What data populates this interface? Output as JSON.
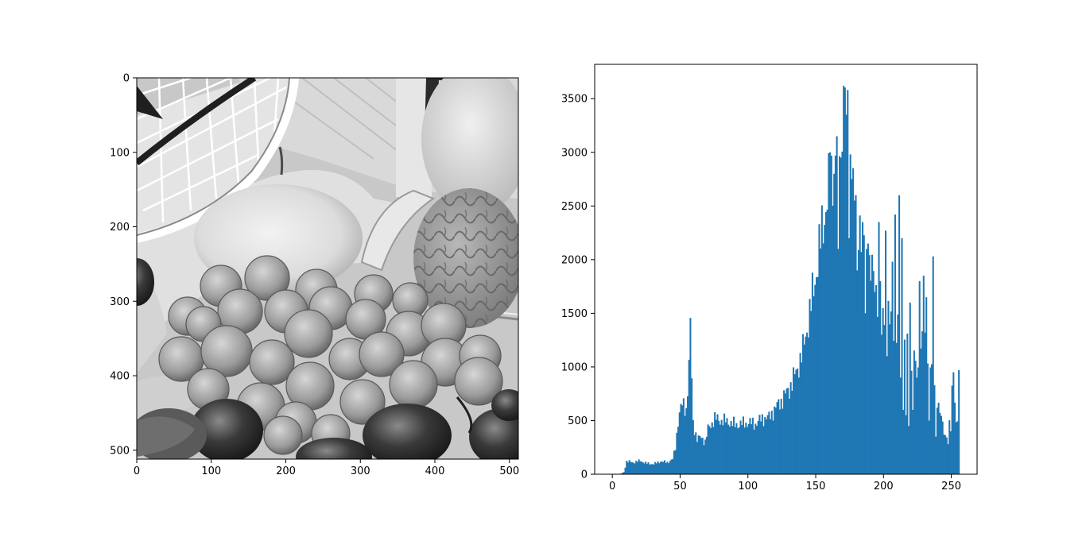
{
  "chart_data": [
    {
      "type": "image",
      "title": "",
      "xlabel": "",
      "ylabel": "",
      "xlim": [
        0,
        512
      ],
      "ylim": [
        512,
        0
      ],
      "xticks": [
        0,
        100,
        200,
        300,
        400,
        500
      ],
      "yticks": [
        0,
        100,
        200,
        300,
        400,
        500
      ],
      "colormap": "gray"
    },
    {
      "type": "bar",
      "title": "",
      "xlabel": "",
      "ylabel": "",
      "xlim": [
        -13,
        269
      ],
      "ylim": [
        0,
        3820
      ],
      "xticks": [
        0,
        50,
        100,
        150,
        200,
        250
      ],
      "yticks": [
        0,
        500,
        1000,
        1500,
        2000,
        2500,
        3000,
        3500
      ],
      "color": "#1f77b4",
      "bin_width": 1,
      "anchors": [
        [
          0,
          0
        ],
        [
          5,
          0
        ],
        [
          8,
          20
        ],
        [
          10,
          120
        ],
        [
          15,
          110
        ],
        [
          20,
          125
        ],
        [
          25,
          100
        ],
        [
          30,
          95
        ],
        [
          35,
          120
        ],
        [
          40,
          110
        ],
        [
          44,
          140
        ],
        [
          46,
          250
        ],
        [
          48,
          500
        ],
        [
          50,
          620
        ],
        [
          52,
          650
        ],
        [
          54,
          600
        ],
        [
          55,
          800
        ],
        [
          56,
          1000
        ],
        [
          57,
          1370
        ],
        [
          58,
          900
        ],
        [
          59,
          480
        ],
        [
          62,
          320
        ],
        [
          65,
          350
        ],
        [
          68,
          300
        ],
        [
          70,
          420
        ],
        [
          75,
          520
        ],
        [
          80,
          500
        ],
        [
          85,
          490
        ],
        [
          90,
          460
        ],
        [
          95,
          470
        ],
        [
          100,
          480
        ],
        [
          105,
          470
        ],
        [
          110,
          520
        ],
        [
          115,
          530
        ],
        [
          120,
          620
        ],
        [
          125,
          700
        ],
        [
          130,
          800
        ],
        [
          135,
          950
        ],
        [
          140,
          1150
        ],
        [
          145,
          1500
        ],
        [
          150,
          1900
        ],
        [
          155,
          2350
        ],
        [
          160,
          2700
        ],
        [
          165,
          3000
        ],
        [
          168,
          3300
        ],
        [
          170,
          3550
        ],
        [
          172,
          3380
        ],
        [
          175,
          2900
        ],
        [
          180,
          2500
        ],
        [
          185,
          2100
        ],
        [
          190,
          1900
        ],
        [
          195,
          1700
        ],
        [
          200,
          1500
        ],
        [
          205,
          1400
        ],
        [
          210,
          1300
        ],
        [
          213,
          1250
        ],
        [
          215,
          1200
        ],
        [
          220,
          1050
        ],
        [
          225,
          1100
        ],
        [
          228,
          1350
        ],
        [
          230,
          1350
        ],
        [
          233,
          1100
        ],
        [
          235,
          1000
        ],
        [
          238,
          800
        ],
        [
          240,
          650
        ],
        [
          243,
          450
        ],
        [
          245,
          350
        ],
        [
          248,
          500
        ],
        [
          250,
          780
        ],
        [
          252,
          650
        ],
        [
          254,
          450
        ],
        [
          255,
          970
        ],
        [
          256,
          0
        ]
      ],
      "spikes": [
        [
          160,
          3000
        ],
        [
          163,
          2800
        ],
        [
          165,
          3150
        ],
        [
          168,
          2950
        ],
        [
          170,
          3620
        ],
        [
          172,
          3350
        ],
        [
          176,
          2750
        ],
        [
          178,
          2550
        ],
        [
          186,
          2450
        ],
        [
          188,
          2150
        ],
        [
          196,
          2350
        ],
        [
          197,
          1800
        ],
        [
          201,
          2270
        ],
        [
          206,
          1980
        ],
        [
          208,
          2420
        ],
        [
          211,
          2600
        ],
        [
          213,
          2200
        ],
        [
          219,
          1600
        ],
        [
          226,
          1800
        ],
        [
          229,
          1850
        ],
        [
          231,
          1650
        ],
        [
          236,
          2030
        ],
        [
          251,
          950
        ]
      ],
      "dips": [
        [
          166,
          2100
        ],
        [
          174,
          2200
        ],
        [
          180,
          1900
        ],
        [
          186,
          1500
        ],
        [
          198,
          1300
        ],
        [
          202,
          1100
        ],
        [
          212,
          900
        ],
        [
          214,
          600
        ],
        [
          216,
          550
        ],
        [
          218,
          450
        ],
        [
          221,
          600
        ],
        [
          224,
          900
        ],
        [
          233,
          500
        ],
        [
          238,
          350
        ],
        [
          247,
          280
        ],
        [
          249,
          400
        ]
      ]
    }
  ]
}
